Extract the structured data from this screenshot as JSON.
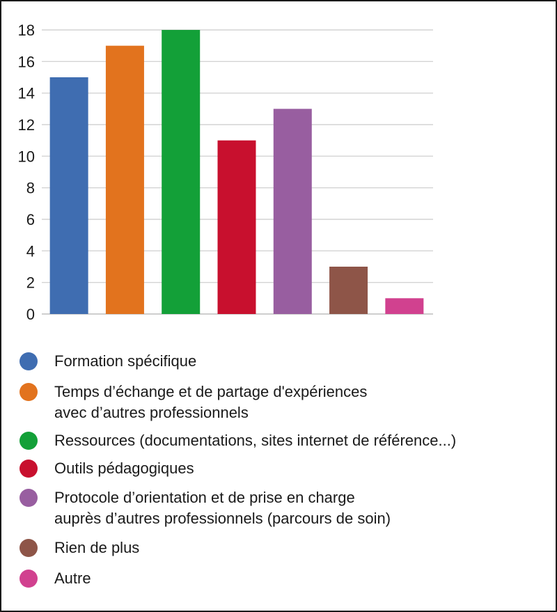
{
  "chart_data": {
    "type": "bar",
    "categories": [
      "Formation spécifique",
      "Temps d’échange et de partage d'expériences avec d’autres professionnels",
      "Ressources (documentations, sites internet de référence...)",
      "Outils pédagogiques",
      "Protocole d’orientation et de prise en charge auprès d’autres professionnels (parcours de soin)",
      "Rien de plus",
      "Autre"
    ],
    "values": [
      15,
      17,
      18,
      11,
      13,
      3,
      1
    ],
    "colors": [
      "#3f6db1",
      "#e2731e",
      "#13a038",
      "#c8102e",
      "#985ea0",
      "#8e5548",
      "#d1418f"
    ],
    "ylim": [
      0,
      18
    ],
    "yticks": [
      0,
      2,
      4,
      6,
      8,
      10,
      12,
      14,
      16,
      18
    ],
    "grid": true,
    "legend_position": "bottom",
    "title": "",
    "xlabel": "",
    "ylabel": ""
  },
  "legend": [
    {
      "lines": [
        "Formation spécifique"
      ],
      "color": "#3f6db1"
    },
    {
      "lines": [
        "Temps d’échange et de partage d'expériences",
        "avec d’autres professionnels"
      ],
      "color": "#e2731e"
    },
    {
      "lines": [
        "Ressources (documentations, sites internet de référence...)"
      ],
      "color": "#13a038"
    },
    {
      "lines": [
        "Outils pédagogiques"
      ],
      "color": "#c8102e"
    },
    {
      "lines": [
        "Protocole d’orientation et de prise en charge",
        "auprès d’autres professionnels (parcours de soin)"
      ],
      "color": "#985ea0"
    },
    {
      "lines": [
        "Rien de plus"
      ],
      "color": "#8e5548"
    },
    {
      "lines": [
        "Autre"
      ],
      "color": "#d1418f"
    }
  ]
}
